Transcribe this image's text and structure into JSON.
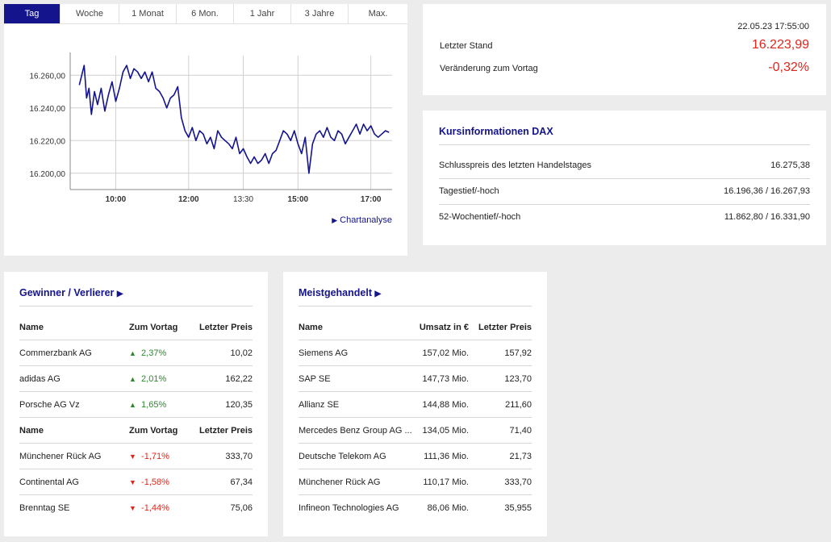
{
  "chart_panel": {
    "tabs": [
      "Tag",
      "Woche",
      "1 Monat",
      "6 Mon.",
      "1 Jahr",
      "3 Jahre",
      "Max."
    ],
    "active_tab": 0,
    "link_label": "Chartanalyse",
    "line_color": "#14148c"
  },
  "chart_data": {
    "type": "line",
    "title": "",
    "xlabel": "",
    "ylabel": "",
    "x_ticks": [
      "10:00",
      "12:00",
      "13:30",
      "15:00",
      "17:00"
    ],
    "y_ticks": [
      "16.200,00",
      "16.220,00",
      "16.240,00",
      "16.260,00"
    ],
    "ylim": [
      16190,
      16272
    ],
    "grid": true,
    "series": [
      {
        "name": "",
        "x": [
          "09:00",
          "09:04",
          "09:08",
          "09:12",
          "09:16",
          "09:20",
          "09:25",
          "09:30",
          "09:36",
          "09:42",
          "09:48",
          "09:54",
          "10:00",
          "10:06",
          "10:12",
          "10:18",
          "10:24",
          "10:30",
          "10:36",
          "10:42",
          "10:48",
          "10:54",
          "11:00",
          "11:06",
          "11:12",
          "11:18",
          "11:24",
          "11:30",
          "11:36",
          "11:42",
          "11:48",
          "11:54",
          "12:00",
          "12:06",
          "12:12",
          "12:18",
          "12:24",
          "12:30",
          "12:36",
          "12:42",
          "12:48",
          "12:54",
          "13:00",
          "13:06",
          "13:12",
          "13:18",
          "13:24",
          "13:30",
          "13:36",
          "13:42",
          "13:48",
          "13:54",
          "14:00",
          "14:06",
          "14:12",
          "14:18",
          "14:24",
          "14:30",
          "14:36",
          "14:42",
          "14:48",
          "14:54",
          "15:00",
          "15:06",
          "15:12",
          "15:18",
          "15:24",
          "15:30",
          "15:36",
          "15:42",
          "15:48",
          "15:54",
          "16:00",
          "16:06",
          "16:12",
          "16:18",
          "16:24",
          "16:30",
          "16:36",
          "16:42",
          "16:48",
          "16:54",
          "17:00",
          "17:06",
          "17:12",
          "17:18",
          "17:24",
          "17:30"
        ],
        "values": [
          16254,
          16260,
          16266,
          16246,
          16252,
          16236,
          16250,
          16242,
          16252,
          16238,
          16248,
          16256,
          16244,
          16252,
          16262,
          16266,
          16258,
          16264,
          16262,
          16258,
          16262,
          16256,
          16262,
          16252,
          16250,
          16246,
          16240,
          16246,
          16248,
          16253,
          16234,
          16226,
          16222,
          16228,
          16220,
          16226,
          16224,
          16218,
          16222,
          16215,
          16226,
          16222,
          16220,
          16218,
          16215,
          16222,
          16212,
          16215,
          16210,
          16206,
          16210,
          16206,
          16208,
          16212,
          16206,
          16212,
          16214,
          16220,
          16226,
          16224,
          16220,
          16226,
          16218,
          16212,
          16222,
          16200,
          16218,
          16224,
          16226,
          16222,
          16228,
          16222,
          16220,
          16226,
          16224,
          16218,
          16222,
          16226,
          16230,
          16224,
          16230,
          16226,
          16229,
          16224,
          16222,
          16224,
          16226,
          16225
        ]
      }
    ]
  },
  "quote_panel": {
    "timestamp": "22.05.23 17:55:00",
    "last_label": "Letzter Stand",
    "last_value": "16.223,99",
    "change_label": "Veränderung zum Vortag",
    "change_value": "-0,32%"
  },
  "info_panel": {
    "title": "Kursinformationen DAX",
    "rows": [
      {
        "label": "Schlusspreis des letzten Handelstages",
        "value": "16.275,38"
      },
      {
        "label": "Tagestief/-hoch",
        "value": "16.196,36 / 16.267,93"
      },
      {
        "label": "52-Wochentief/-hoch",
        "value": "11.862,80 / 16.331,90"
      }
    ]
  },
  "movers_panel": {
    "title": "Gewinner / Verlierer",
    "headers": [
      "Name",
      "Zum Vortag",
      "Letzter Preis"
    ],
    "gainers": [
      {
        "name": "Commerzbank AG",
        "change": "2,37%",
        "price": "10,02"
      },
      {
        "name": "adidas AG",
        "change": "2,01%",
        "price": "162,22"
      },
      {
        "name": "Porsche AG Vz",
        "change": "1,65%",
        "price": "120,35"
      }
    ],
    "losers": [
      {
        "name": "Münchener Rück AG",
        "change": "-1,71%",
        "price": "333,70"
      },
      {
        "name": "Continental AG",
        "change": "-1,58%",
        "price": "67,34"
      },
      {
        "name": "Brenntag SE",
        "change": "-1,44%",
        "price": "75,06"
      }
    ]
  },
  "traded_panel": {
    "title": "Meistgehandelt",
    "headers": [
      "Name",
      "Umsatz in €",
      "Letzter Preis"
    ],
    "rows": [
      {
        "name": "Siemens AG",
        "volume": "157,02 Mio.",
        "price": "157,92"
      },
      {
        "name": "SAP SE",
        "volume": "147,73 Mio.",
        "price": "123,70"
      },
      {
        "name": "Allianz SE",
        "volume": "144,88 Mio.",
        "price": "211,60"
      },
      {
        "name": "Mercedes Benz Group AG ...",
        "volume": "134,05 Mio.",
        "price": "71,40"
      },
      {
        "name": "Deutsche Telekom AG",
        "volume": "111,36 Mio.",
        "price": "21,73"
      },
      {
        "name": "Münchener Rück AG",
        "volume": "110,17 Mio.",
        "price": "333,70"
      },
      {
        "name": "Infineon Technologies AG",
        "volume": "86,06 Mio.",
        "price": "35,955"
      }
    ]
  }
}
